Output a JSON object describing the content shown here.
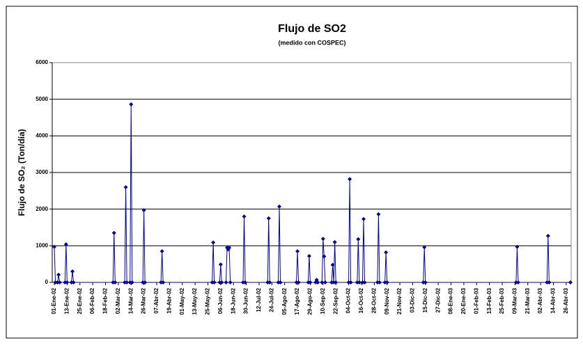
{
  "chart_data": {
    "type": "line",
    "title": "Flujo de SO2",
    "subtitle": "(medido con COSPEC)",
    "y_label": "Flujo de SO₂ (Ton/día)",
    "series": [
      {
        "name": "Flujo de SO2",
        "color": "#0000a0",
        "x": [
          "2002-01-01",
          "2002-01-02",
          "2002-01-04",
          "2002-01-05",
          "2002-01-06",
          "2002-01-11",
          "2002-01-12",
          "2002-01-13",
          "2002-01-17",
          "2002-01-18",
          "2002-01-19",
          "2002-02-25",
          "2002-02-26",
          "2002-02-27",
          "2002-03-08",
          "2002-03-09",
          "2002-03-10",
          "2002-03-13",
          "2002-03-14",
          "2002-03-15",
          "2002-03-25",
          "2002-03-26",
          "2002-03-27",
          "2002-04-11",
          "2002-04-12",
          "2002-04-13",
          "2002-05-29",
          "2002-05-30",
          "2002-05-31",
          "2002-06-05",
          "2002-06-06",
          "2002-06-07",
          "2002-06-11",
          "2002-06-12",
          "2002-06-13",
          "2002-06-14",
          "2002-06-15",
          "2002-06-27",
          "2002-06-28",
          "2002-06-29",
          "2002-07-20",
          "2002-07-21",
          "2002-07-22",
          "2002-07-30",
          "2002-07-31",
          "2002-08-01",
          "2002-08-16",
          "2002-08-17",
          "2002-08-18",
          "2002-08-27",
          "2002-08-28",
          "2002-08-29",
          "2002-09-03",
          "2002-09-04",
          "2002-09-05",
          "2002-09-09",
          "2002-09-10",
          "2002-09-11",
          "2002-09-12",
          "2002-09-18",
          "2002-09-19",
          "2002-09-20",
          "2002-09-21",
          "2002-09-22",
          "2002-10-04",
          "2002-10-05",
          "2002-10-06",
          "2002-10-12",
          "2002-10-13",
          "2002-10-14",
          "2002-10-17",
          "2002-10-18",
          "2002-10-19",
          "2002-10-31",
          "2002-11-01",
          "2002-11-02",
          "2002-11-07",
          "2002-11-08",
          "2002-11-09",
          "2002-12-13",
          "2002-12-14",
          "2002-12-15",
          "2003-03-10",
          "2003-03-11",
          "2003-03-12",
          "2003-04-08",
          "2003-04-09",
          "2003-04-10",
          "2003-04-30"
        ],
        "values": [
          970,
          0,
          0,
          210,
          0,
          0,
          1040,
          0,
          0,
          300,
          0,
          0,
          1350,
          0,
          0,
          2600,
          0,
          0,
          4860,
          0,
          0,
          1970,
          0,
          0,
          850,
          0,
          0,
          1090,
          0,
          0,
          490,
          0,
          0,
          950,
          900,
          950,
          0,
          0,
          1800,
          0,
          0,
          1750,
          0,
          0,
          2070,
          0,
          0,
          850,
          0,
          0,
          720,
          0,
          0,
          70,
          0,
          0,
          1190,
          710,
          0,
          0,
          480,
          0,
          1100,
          0,
          0,
          2820,
          0,
          0,
          1180,
          0,
          0,
          1730,
          0,
          0,
          1860,
          0,
          0,
          820,
          0,
          0,
          960,
          0,
          0,
          970,
          0,
          0,
          1270,
          0,
          0
        ]
      }
    ],
    "xlim": [
      "2002-01-01",
      "2003-04-30"
    ],
    "xticks": [
      {
        "value": "2002-01-01",
        "label": "01-Ene-02"
      },
      {
        "value": "2002-01-13",
        "label": "13-Ene-02"
      },
      {
        "value": "2002-01-25",
        "label": "25-Ene-02"
      },
      {
        "value": "2002-02-06",
        "label": "06-Feb-02"
      },
      {
        "value": "2002-02-18",
        "label": "18-Feb-02"
      },
      {
        "value": "2002-03-02",
        "label": "02-Mar-02"
      },
      {
        "value": "2002-03-14",
        "label": "14-Mar-02"
      },
      {
        "value": "2002-03-26",
        "label": "26-Mar-02"
      },
      {
        "value": "2002-04-07",
        "label": "07-Abr-02"
      },
      {
        "value": "2002-04-19",
        "label": "19-Abr-02"
      },
      {
        "value": "2002-05-01",
        "label": "01-May-02"
      },
      {
        "value": "2002-05-13",
        "label": "13-May-02"
      },
      {
        "value": "2002-05-25",
        "label": "25-May-02"
      },
      {
        "value": "2002-06-06",
        "label": "06-Jun-02"
      },
      {
        "value": "2002-06-18",
        "label": "18-Jun-02"
      },
      {
        "value": "2002-06-30",
        "label": "30-Jun-02"
      },
      {
        "value": "2002-07-12",
        "label": "12-Jul-02"
      },
      {
        "value": "2002-07-24",
        "label": "24-Jul-02"
      },
      {
        "value": "2002-08-05",
        "label": "05-Ago-02"
      },
      {
        "value": "2002-08-17",
        "label": "17-Ago-02"
      },
      {
        "value": "2002-08-29",
        "label": "29-Ago-02"
      },
      {
        "value": "2002-09-10",
        "label": "10-Sep-02"
      },
      {
        "value": "2002-09-22",
        "label": "22-Sep-02"
      },
      {
        "value": "2002-10-04",
        "label": "04-Oct-02"
      },
      {
        "value": "2002-10-16",
        "label": "16-Oct-02"
      },
      {
        "value": "2002-10-28",
        "label": "28-Oct-02"
      },
      {
        "value": "2002-11-09",
        "label": "09-Nov-02"
      },
      {
        "value": "2002-11-21",
        "label": "21-Nov-02"
      },
      {
        "value": "2002-12-03",
        "label": "03-Dic-02"
      },
      {
        "value": "2002-12-15",
        "label": "15-Dic-02"
      },
      {
        "value": "2002-12-27",
        "label": "27-Dic-02"
      },
      {
        "value": "2003-01-08",
        "label": "08-Ene-03"
      },
      {
        "value": "2003-01-20",
        "label": "20-Ene-03"
      },
      {
        "value": "2003-02-01",
        "label": "01-Feb-03"
      },
      {
        "value": "2003-02-13",
        "label": "13-Feb-03"
      },
      {
        "value": "2003-02-25",
        "label": "25-Feb-03"
      },
      {
        "value": "2003-03-09",
        "label": "09-Mar-03"
      },
      {
        "value": "2003-03-21",
        "label": "21-Mar-03"
      },
      {
        "value": "2003-04-02",
        "label": "02-Abr-03"
      },
      {
        "value": "2003-04-14",
        "label": "14-Abr-03"
      },
      {
        "value": "2003-04-26",
        "label": "26-Abr-03"
      }
    ],
    "ylim": [
      0,
      6000
    ],
    "yticks": [
      0,
      1000,
      2000,
      3000,
      4000,
      5000,
      6000
    ],
    "grid": true
  }
}
